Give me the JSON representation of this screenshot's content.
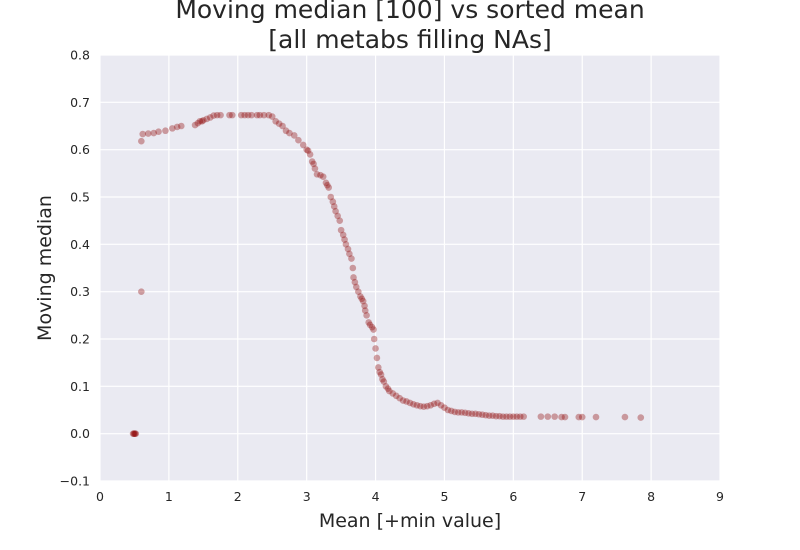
{
  "chart_data": {
    "type": "scatter",
    "title_lines": [
      "Moving median [100] vs sorted mean",
      "[all metabs filling NAs]"
    ],
    "xlabel": "Mean [+min value]",
    "ylabel": "Moving median",
    "xlim": [
      0,
      9
    ],
    "ylim": [
      -0.1,
      0.8
    ],
    "x_ticks": [
      0,
      1,
      2,
      3,
      4,
      5,
      6,
      7,
      8,
      9
    ],
    "x_tick_labels": [
      "0",
      "1",
      "2",
      "3",
      "4",
      "5",
      "6",
      "7",
      "8",
      "9"
    ],
    "y_ticks": [
      -0.1,
      0.0,
      0.1,
      0.2,
      0.3,
      0.4,
      0.5,
      0.6,
      0.7,
      0.8
    ],
    "y_tick_labels": [
      "−0.1",
      "0.0",
      "0.1",
      "0.2",
      "0.3",
      "0.4",
      "0.5",
      "0.6",
      "0.7",
      "0.8"
    ],
    "grid": true,
    "background_color": "#eaeaf2",
    "point_color": "#8b0000",
    "series": [
      {
        "points": [
          [
            0.48,
            0.0
          ],
          [
            0.49,
            0.0
          ],
          [
            0.5,
            0.0
          ],
          [
            0.51,
            0.0
          ],
          [
            0.52,
            0.0
          ],
          [
            0.6,
            0.3
          ],
          [
            0.6,
            0.618
          ],
          [
            0.62,
            0.633
          ],
          [
            0.7,
            0.634
          ],
          [
            0.78,
            0.635
          ],
          [
            0.85,
            0.638
          ],
          [
            0.95,
            0.64
          ],
          [
            1.05,
            0.645
          ],
          [
            1.12,
            0.648
          ],
          [
            1.18,
            0.65
          ],
          [
            1.38,
            0.652
          ],
          [
            1.42,
            0.656
          ],
          [
            1.45,
            0.66
          ],
          [
            1.48,
            0.66
          ],
          [
            1.5,
            0.662
          ],
          [
            1.55,
            0.665
          ],
          [
            1.6,
            0.668
          ],
          [
            1.65,
            0.672
          ],
          [
            1.7,
            0.673
          ],
          [
            1.75,
            0.673
          ],
          [
            1.88,
            0.673
          ],
          [
            1.92,
            0.673
          ],
          [
            2.05,
            0.673
          ],
          [
            2.1,
            0.673
          ],
          [
            2.15,
            0.673
          ],
          [
            2.2,
            0.673
          ],
          [
            2.28,
            0.673
          ],
          [
            2.32,
            0.673
          ],
          [
            2.38,
            0.673
          ],
          [
            2.45,
            0.673
          ],
          [
            2.5,
            0.67
          ],
          [
            2.55,
            0.66
          ],
          [
            2.6,
            0.655
          ],
          [
            2.65,
            0.65
          ],
          [
            2.7,
            0.64
          ],
          [
            2.75,
            0.635
          ],
          [
            2.82,
            0.63
          ],
          [
            2.88,
            0.62
          ],
          [
            2.95,
            0.61
          ],
          [
            3.0,
            0.6
          ],
          [
            3.02,
            0.598
          ],
          [
            3.05,
            0.59
          ],
          [
            3.08,
            0.575
          ],
          [
            3.1,
            0.57
          ],
          [
            3.12,
            0.56
          ],
          [
            3.15,
            0.548
          ],
          [
            3.2,
            0.546
          ],
          [
            3.24,
            0.543
          ],
          [
            3.28,
            0.53
          ],
          [
            3.3,
            0.525
          ],
          [
            3.32,
            0.52
          ],
          [
            3.35,
            0.5
          ],
          [
            3.38,
            0.49
          ],
          [
            3.4,
            0.48
          ],
          [
            3.42,
            0.47
          ],
          [
            3.45,
            0.46
          ],
          [
            3.48,
            0.45
          ],
          [
            3.5,
            0.43
          ],
          [
            3.53,
            0.42
          ],
          [
            3.55,
            0.41
          ],
          [
            3.57,
            0.4
          ],
          [
            3.6,
            0.39
          ],
          [
            3.62,
            0.38
          ],
          [
            3.65,
            0.37
          ],
          [
            3.67,
            0.35
          ],
          [
            3.68,
            0.33
          ],
          [
            3.7,
            0.32
          ],
          [
            3.72,
            0.31
          ],
          [
            3.75,
            0.3
          ],
          [
            3.78,
            0.29
          ],
          [
            3.8,
            0.285
          ],
          [
            3.82,
            0.28
          ],
          [
            3.84,
            0.27
          ],
          [
            3.85,
            0.26
          ],
          [
            3.87,
            0.25
          ],
          [
            3.9,
            0.235
          ],
          [
            3.92,
            0.23
          ],
          [
            3.95,
            0.225
          ],
          [
            3.97,
            0.22
          ],
          [
            3.98,
            0.2
          ],
          [
            4.0,
            0.18
          ],
          [
            4.02,
            0.16
          ],
          [
            4.04,
            0.14
          ],
          [
            4.06,
            0.13
          ],
          [
            4.08,
            0.125
          ],
          [
            4.1,
            0.115
          ],
          [
            4.12,
            0.11
          ],
          [
            4.15,
            0.1
          ],
          [
            4.18,
            0.095
          ],
          [
            4.2,
            0.09
          ],
          [
            4.25,
            0.085
          ],
          [
            4.3,
            0.08
          ],
          [
            4.35,
            0.075
          ],
          [
            4.4,
            0.07
          ],
          [
            4.45,
            0.068
          ],
          [
            4.5,
            0.065
          ],
          [
            4.55,
            0.062
          ],
          [
            4.6,
            0.06
          ],
          [
            4.65,
            0.058
          ],
          [
            4.7,
            0.057
          ],
          [
            4.75,
            0.058
          ],
          [
            4.8,
            0.06
          ],
          [
            4.85,
            0.063
          ],
          [
            4.9,
            0.065
          ],
          [
            4.95,
            0.06
          ],
          [
            5.0,
            0.055
          ],
          [
            5.05,
            0.05
          ],
          [
            5.1,
            0.048
          ],
          [
            5.15,
            0.046
          ],
          [
            5.2,
            0.045
          ],
          [
            5.25,
            0.045
          ],
          [
            5.3,
            0.044
          ],
          [
            5.35,
            0.043
          ],
          [
            5.4,
            0.042
          ],
          [
            5.45,
            0.042
          ],
          [
            5.5,
            0.041
          ],
          [
            5.55,
            0.04
          ],
          [
            5.6,
            0.039
          ],
          [
            5.65,
            0.038
          ],
          [
            5.7,
            0.038
          ],
          [
            5.75,
            0.037
          ],
          [
            5.8,
            0.037
          ],
          [
            5.85,
            0.036
          ],
          [
            5.9,
            0.036
          ],
          [
            5.95,
            0.036
          ],
          [
            6.0,
            0.036
          ],
          [
            6.05,
            0.036
          ],
          [
            6.1,
            0.036
          ],
          [
            6.15,
            0.036
          ],
          [
            6.4,
            0.036
          ],
          [
            6.5,
            0.036
          ],
          [
            6.6,
            0.036
          ],
          [
            6.7,
            0.035
          ],
          [
            6.75,
            0.035
          ],
          [
            6.95,
            0.035
          ],
          [
            7.0,
            0.035
          ],
          [
            7.2,
            0.035
          ],
          [
            7.62,
            0.035
          ],
          [
            7.85,
            0.034
          ]
        ]
      }
    ]
  }
}
